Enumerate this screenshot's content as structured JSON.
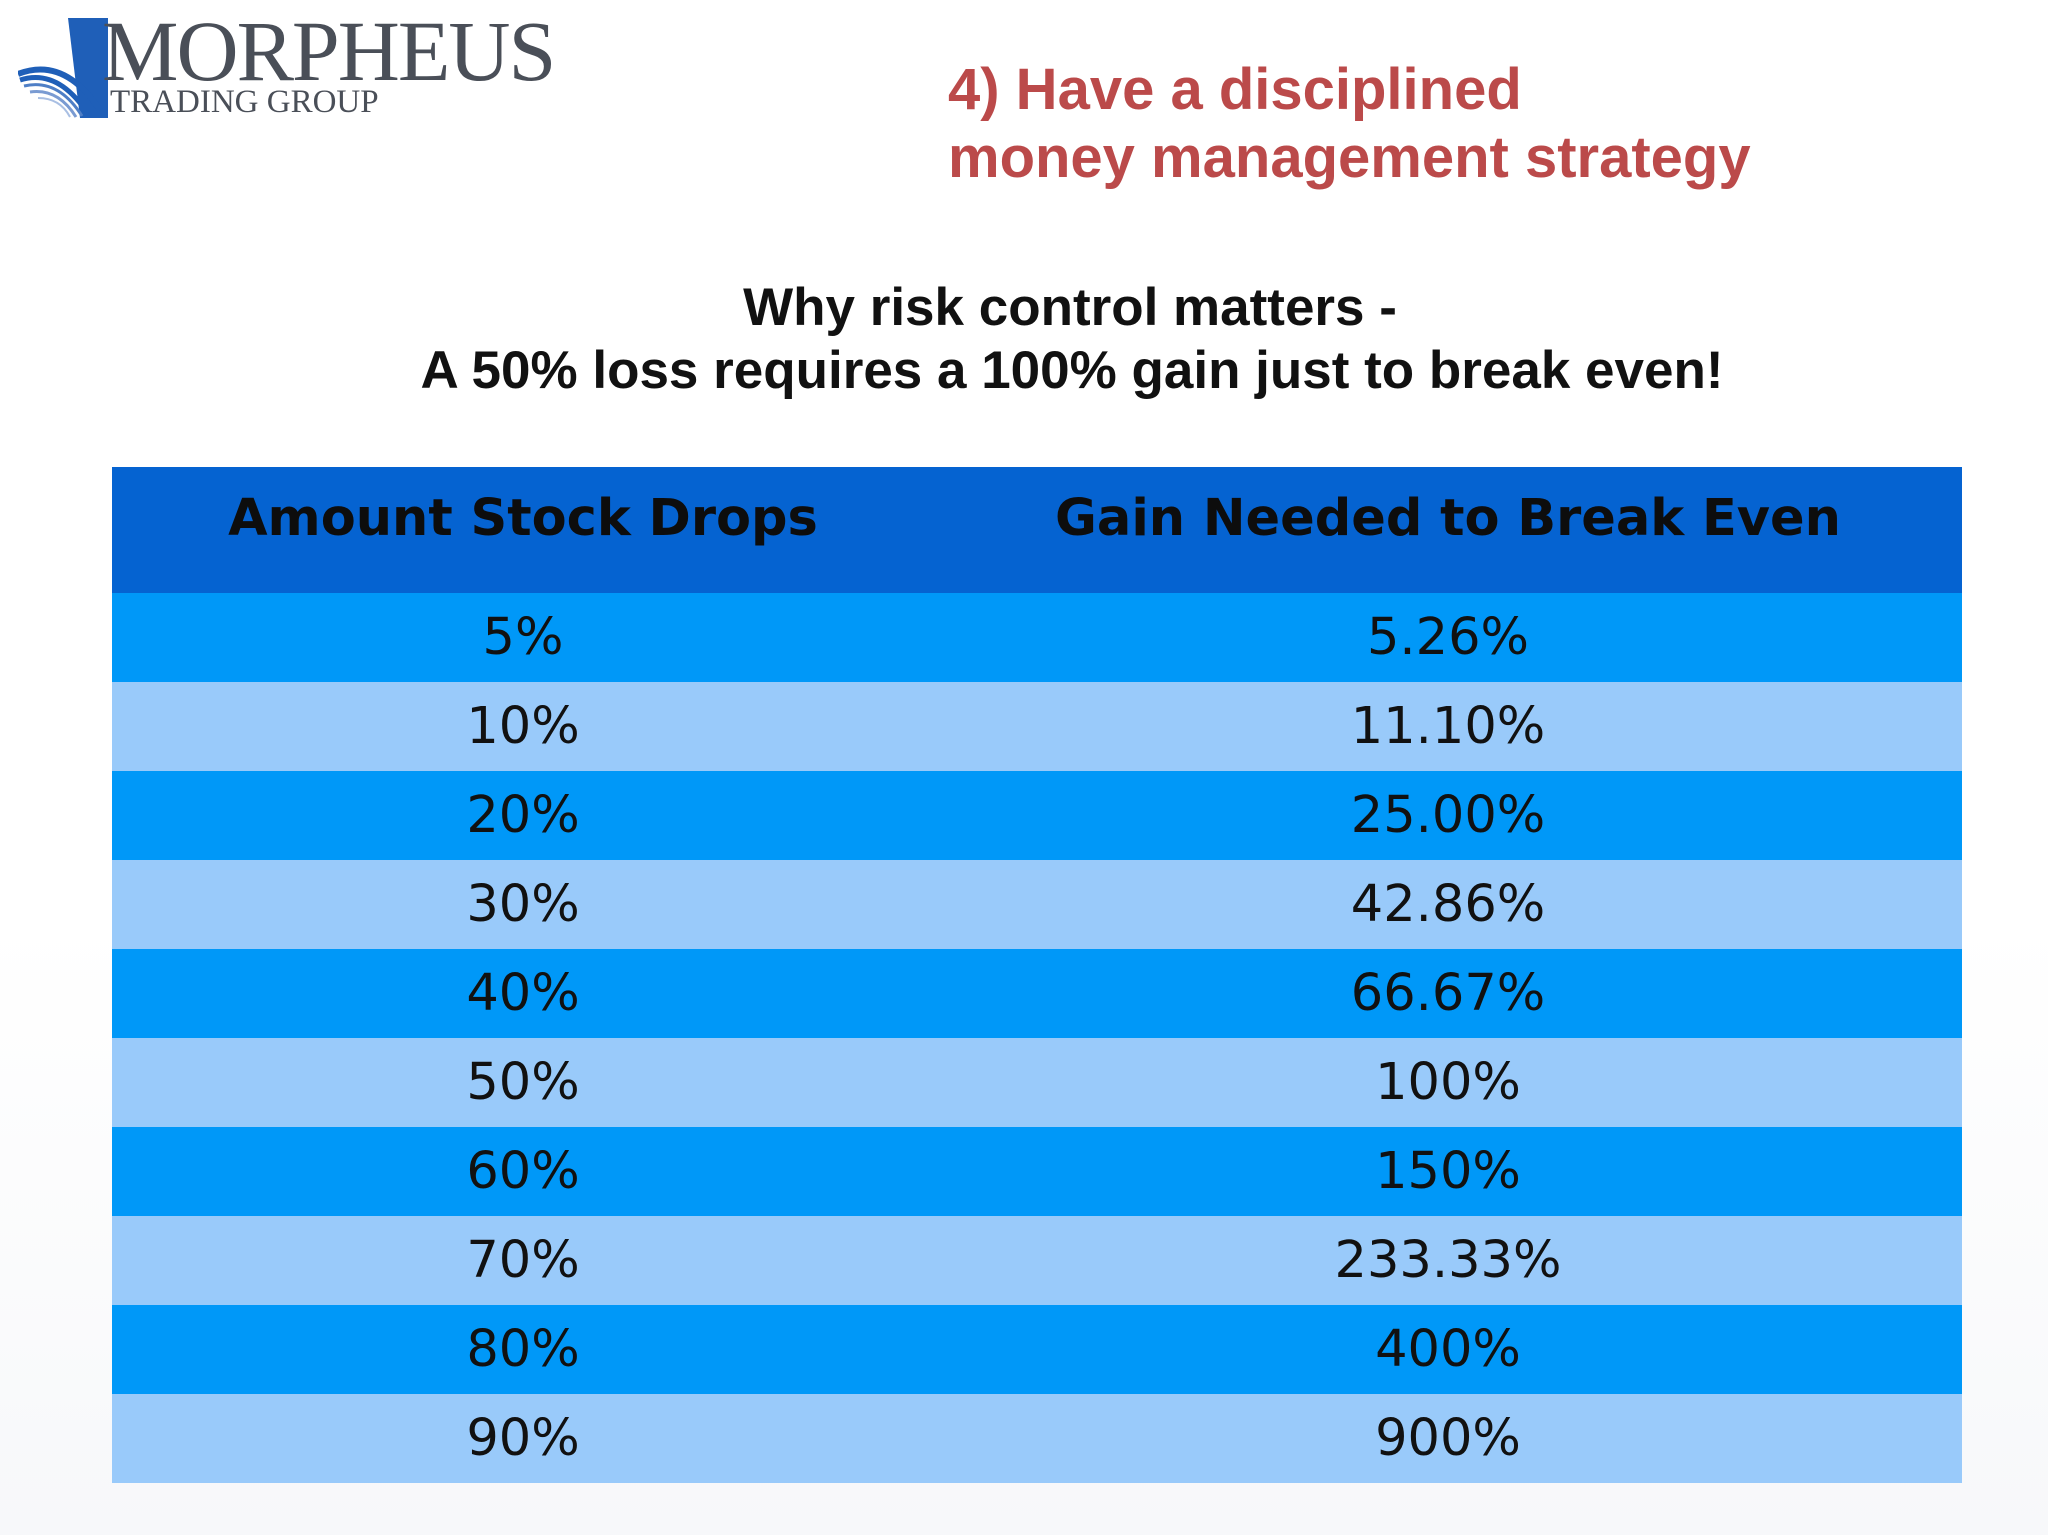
{
  "logo": {
    "name": "MORPHEUS",
    "sub": "TRADING GROUP"
  },
  "headline": {
    "line1": "4) Have a disciplined",
    "line2": "money management strategy"
  },
  "subtitle": {
    "line1": "Why risk control matters -",
    "line2": "A 50% loss requires a 100% gain just to break even!"
  },
  "table": {
    "headers": [
      "Amount Stock Drops",
      "Gain Needed to Break Even"
    ],
    "rows": [
      [
        "5%",
        "5.26%"
      ],
      [
        "10%",
        "11.10%"
      ],
      [
        "20%",
        "25.00%"
      ],
      [
        "30%",
        "42.86%"
      ],
      [
        "40%",
        "66.67%"
      ],
      [
        "50%",
        "100%"
      ],
      [
        "60%",
        "150%"
      ],
      [
        "70%",
        "233.33%"
      ],
      [
        "80%",
        "400%"
      ],
      [
        "90%",
        "900%"
      ]
    ]
  },
  "colors": {
    "headline": "#bb4a4a",
    "header_band": "#0563d1",
    "row_dark": "#0098f8",
    "row_light": "#99cafa"
  }
}
